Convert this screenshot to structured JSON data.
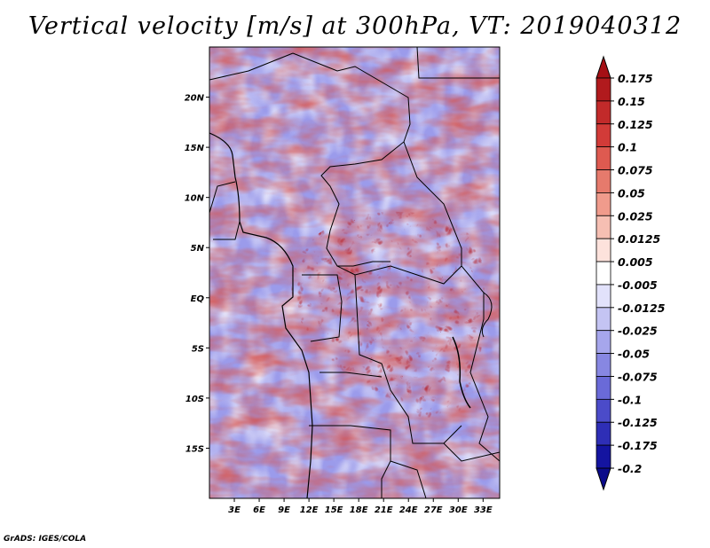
{
  "title": "Vertical velocity [m/s] at 300hPa, VT: 2019040312",
  "footer": "GrADS: IGES/COLA",
  "map": {
    "region": "Central Africa",
    "variable": "Vertical velocity",
    "units": "m/s",
    "level": "300hPa",
    "valid_time": "2019040312",
    "lon_range": [
      0,
      35
    ],
    "lat_range": [
      -20,
      25
    ],
    "lat_labels": [
      {
        "value": 20,
        "label": "20N"
      },
      {
        "value": 15,
        "label": "15N"
      },
      {
        "value": 10,
        "label": "10N"
      },
      {
        "value": 5,
        "label": "5N"
      },
      {
        "value": 0,
        "label": "EQ"
      },
      {
        "value": -5,
        "label": "5S"
      },
      {
        "value": -10,
        "label": "10S"
      },
      {
        "value": -15,
        "label": "15S"
      }
    ],
    "lon_labels": [
      {
        "value": 3,
        "label": "3E"
      },
      {
        "value": 6,
        "label": "6E"
      },
      {
        "value": 9,
        "label": "9E"
      },
      {
        "value": 12,
        "label": "12E"
      },
      {
        "value": 15,
        "label": "15E"
      },
      {
        "value": 18,
        "label": "18E"
      },
      {
        "value": 21,
        "label": "21E"
      },
      {
        "value": 24,
        "label": "24E"
      },
      {
        "value": 27,
        "label": "27E"
      },
      {
        "value": 30,
        "label": "30E"
      },
      {
        "value": 33,
        "label": "33E"
      }
    ]
  },
  "colorbar": {
    "levels": [
      "0.175",
      "0.15",
      "0.125",
      "0.1",
      "0.075",
      "0.05",
      "0.025",
      "0.0125",
      "0.005",
      "-0.005",
      "-0.0125",
      "-0.025",
      "-0.05",
      "-0.075",
      "-0.1",
      "-0.125",
      "-0.175",
      "-0.2"
    ],
    "colors": [
      "#a50f15",
      "#b11a1d",
      "#c22a2a",
      "#d23b38",
      "#de5a50",
      "#e67a6c",
      "#f09b8c",
      "#f6bfb3",
      "#fde2dc",
      "#ffffff",
      "#e2e2fb",
      "#c4c4f3",
      "#a6a6ec",
      "#8787e2",
      "#6a6ad8",
      "#4b4bc9",
      "#2e2eb6",
      "#1414a0",
      "#0a0a8a"
    ]
  }
}
